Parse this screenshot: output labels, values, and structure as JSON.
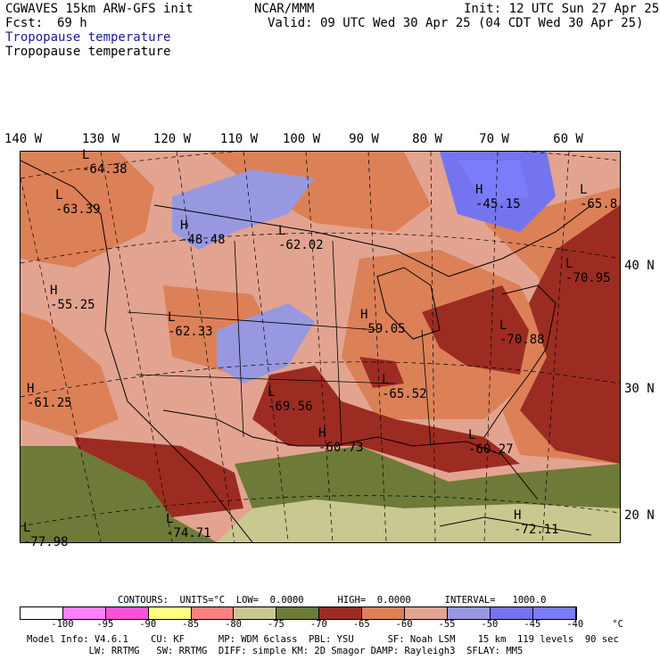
{
  "header": {
    "model": "CGWAVES 15km ARW-GFS init",
    "org": "NCAR/MMM",
    "init": "Init: 12 UTC Sun 27 Apr 25",
    "fcst_label": "Fcst:",
    "fcst_value": "69 h",
    "valid": "Valid: 09 UTC Wed 30 Apr 25 (04 CDT Wed 30 Apr 25)",
    "field_title_1": "Tropopause temperature",
    "field_title_2": "Tropopause temperature"
  },
  "map": {
    "longitude_labels": [
      "140 W",
      "130 W",
      "120 W",
      "110 W",
      "100 W",
      "90 W",
      "80 W",
      "70 W",
      "60 W"
    ],
    "latitude_labels": [
      "40 N",
      "30 N",
      "20 N"
    ],
    "markers": [
      {
        "type": "L",
        "value": "-64.38"
      },
      {
        "type": "L",
        "value": "-63.39"
      },
      {
        "type": "H",
        "value": "-48.48"
      },
      {
        "type": "L",
        "value": "-62.02"
      },
      {
        "type": "H",
        "value": "-45.15"
      },
      {
        "type": "L",
        "value": "-65.8"
      },
      {
        "type": "H",
        "value": "-55.25"
      },
      {
        "type": "L",
        "value": "-70.95"
      },
      {
        "type": "L",
        "value": "-62.33"
      },
      {
        "type": "H",
        "value": "-59.05"
      },
      {
        "type": "L",
        "value": "-70.88"
      },
      {
        "type": "H",
        "value": "-61.25"
      },
      {
        "type": "L",
        "value": "-69.56"
      },
      {
        "type": "L",
        "value": "-65.52"
      },
      {
        "type": "H",
        "value": "-60.73"
      },
      {
        "type": "L",
        "value": "-60.27"
      },
      {
        "type": "L",
        "value": "-77.98"
      },
      {
        "type": "L",
        "value": "-74.71"
      },
      {
        "type": "H",
        "value": "-72.11"
      }
    ]
  },
  "colorbar": {
    "contours_line": "CONTOURS:  UNITS=°C  LOW=  0.0000      HIGH=  0.0000      INTERVAL=   1000.0",
    "colors": [
      "#ffffff",
      "#ff80ff",
      "#ff50d8",
      "#ffff80",
      "#ff8080",
      "#c8c890",
      "#6e7a38",
      "#9c2c22",
      "#dc8058",
      "#e2a490",
      "#9898e0",
      "#7474ee",
      "#7a7cf8"
    ],
    "ticks": [
      "-100",
      "-95",
      "-90",
      "-85",
      "-80",
      "-75",
      "-70",
      "-65",
      "-60",
      "-55",
      "-50",
      "-45",
      "-40",
      "°C"
    ]
  },
  "footer": {
    "line1": "Model Info: V4.6.1    CU: KF      MP: WDM 6class  PBL: YSU      SF: Noah LSM    15 km  119 levels  90 sec",
    "line2": "           LW: RRTMG   SW: RRTMG  DIFF: simple KM: 2D Smagor DAMP: Rayleigh3  SFLAY: MM5"
  }
}
